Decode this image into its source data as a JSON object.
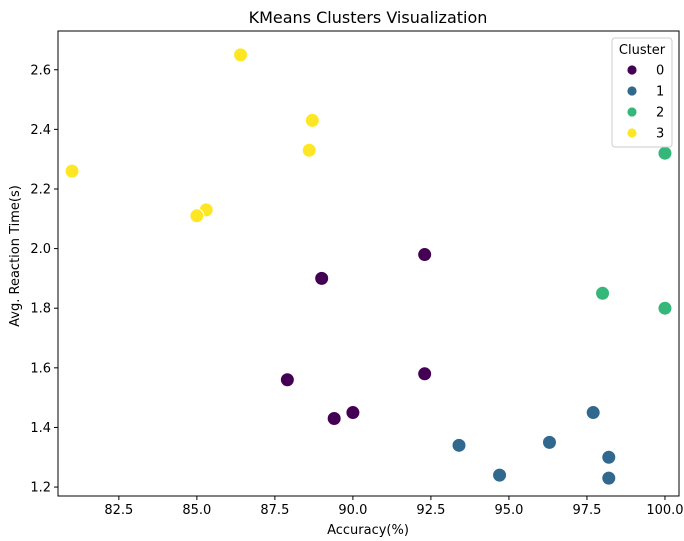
{
  "chart_data": {
    "type": "scatter",
    "title": "KMeans Clusters Visualization",
    "xlabel": "Accuracy(%)",
    "ylabel": "Avg. Reaction Time(s)",
    "xlim": [
      80.55,
      100.45
    ],
    "ylim": [
      1.17,
      2.73
    ],
    "xticks": [
      82.5,
      85.0,
      87.5,
      90.0,
      92.5,
      95.0,
      97.5,
      100.0
    ],
    "xtick_labels": [
      "82.5",
      "85.0",
      "87.5",
      "90.0",
      "92.5",
      "95.0",
      "97.5",
      "100.0"
    ],
    "yticks": [
      1.2,
      1.4,
      1.6,
      1.8,
      2.0,
      2.2,
      2.4,
      2.6
    ],
    "ytick_labels": [
      "1.2",
      "1.4",
      "1.6",
      "1.8",
      "2.0",
      "2.2",
      "2.4",
      "2.6"
    ],
    "grid": false,
    "legend": {
      "title": "Cluster",
      "placement": "top-right"
    },
    "series": [
      {
        "name": "0",
        "color": "#440154",
        "points": [
          [
            89.0,
            1.9
          ],
          [
            92.3,
            1.98
          ],
          [
            92.3,
            1.58
          ],
          [
            87.9,
            1.56
          ],
          [
            90.0,
            1.45
          ],
          [
            89.4,
            1.43
          ]
        ]
      },
      {
        "name": "1",
        "color": "#31688e",
        "points": [
          [
            97.7,
            1.45
          ],
          [
            98.2,
            1.3
          ],
          [
            98.2,
            1.23
          ],
          [
            96.3,
            1.35
          ],
          [
            93.4,
            1.34
          ],
          [
            94.7,
            1.24
          ]
        ]
      },
      {
        "name": "2",
        "color": "#35b779",
        "points": [
          [
            100.0,
            2.32
          ],
          [
            98.0,
            1.85
          ],
          [
            100.0,
            1.8
          ]
        ]
      },
      {
        "name": "3",
        "color": "#fde725",
        "points": [
          [
            86.4,
            2.65
          ],
          [
            88.7,
            2.43
          ],
          [
            88.6,
            2.33
          ],
          [
            81.0,
            2.26
          ],
          [
            85.3,
            2.13
          ],
          [
            85.0,
            2.11
          ]
        ]
      }
    ]
  }
}
